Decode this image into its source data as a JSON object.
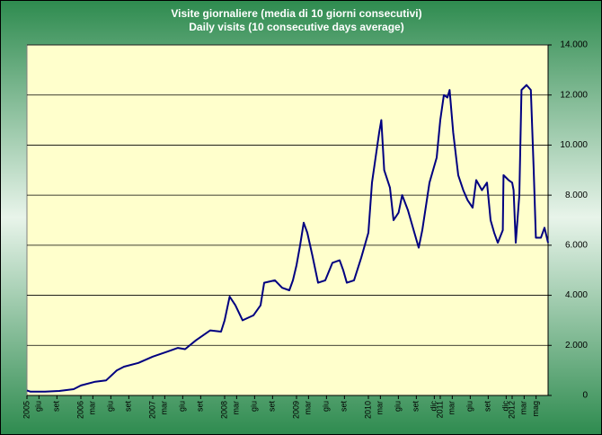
{
  "chart_data": {
    "type": "line",
    "title": "Visite giornaliere (media di 10 giorni consecutivi)",
    "subtitle": "Daily visits (10 consecutive days average)",
    "x": [
      2005.25,
      2005.3,
      2005.5,
      2005.7,
      2005.9,
      2006.0,
      2006.2,
      2006.35,
      2006.5,
      2006.6,
      2006.8,
      2007.0,
      2007.2,
      2007.35,
      2007.45,
      2007.6,
      2007.8,
      2007.95,
      2008.0,
      2008.07,
      2008.15,
      2008.25,
      2008.4,
      2008.5,
      2008.55,
      2008.7,
      2008.8,
      2008.9,
      2008.95,
      2009.0,
      2009.05,
      2009.1,
      2009.15,
      2009.22,
      2009.3,
      2009.4,
      2009.5,
      2009.6,
      2009.65,
      2009.7,
      2009.8,
      2009.9,
      2010.0,
      2010.05,
      2010.1,
      2010.15,
      2010.18,
      2010.22,
      2010.3,
      2010.35,
      2010.42,
      2010.47,
      2010.55,
      2010.62,
      2010.7,
      2010.75,
      2010.85,
      2010.95,
      2011.0,
      2011.05,
      2011.1,
      2011.13,
      2011.18,
      2011.25,
      2011.32,
      2011.38,
      2011.45,
      2011.5,
      2011.58,
      2011.65,
      2011.7,
      2011.75,
      2011.8,
      2011.87,
      2011.88,
      2011.95,
      2012.0,
      2012.02,
      2012.05,
      2012.1,
      2012.13,
      2012.2,
      2012.26,
      2012.3,
      2012.33,
      2012.4,
      2012.45,
      2012.5
    ],
    "values": [
      200,
      150,
      150,
      180,
      250,
      400,
      550,
      600,
      1000,
      1150,
      1300,
      1550,
      1750,
      1900,
      1850,
      2200,
      2600,
      2550,
      3000,
      3950,
      3600,
      3000,
      3200,
      3600,
      4500,
      4600,
      4300,
      4200,
      4600,
      5200,
      6000,
      6900,
      6500,
      5600,
      4500,
      4600,
      5300,
      5400,
      5000,
      4500,
      4600,
      5500,
      6500,
      8500,
      9500,
      10500,
      11000,
      9000,
      8300,
      7000,
      7300,
      8000,
      7400,
      6700,
      5900,
      6600,
      8500,
      9500,
      11000,
      12000,
      11900,
      12200,
      10500,
      8800,
      8200,
      7800,
      7500,
      8600,
      8200,
      8500,
      7000,
      6500,
      6100,
      6600,
      8800,
      8600,
      8500,
      8200,
      6100,
      8000,
      12200,
      12400,
      12200,
      9000,
      6300,
      6300,
      6700,
      6100
    ],
    "color": "#000080",
    "xlim": [
      2005.25,
      2012.5
    ],
    "xticks": [
      {
        "value": 2005.25,
        "label": "2005"
      },
      {
        "value": 2005.417,
        "label": "giu"
      },
      {
        "value": 2005.667,
        "label": "set"
      },
      {
        "value": 2006,
        "label": "2006"
      },
      {
        "value": 2006.167,
        "label": "mar"
      },
      {
        "value": 2006.417,
        "label": "giu"
      },
      {
        "value": 2006.667,
        "label": "set"
      },
      {
        "value": 2007,
        "label": "2007"
      },
      {
        "value": 2007.167,
        "label": "mar"
      },
      {
        "value": 2007.417,
        "label": "giu"
      },
      {
        "value": 2007.667,
        "label": "set"
      },
      {
        "value": 2008,
        "label": "2008"
      },
      {
        "value": 2008.167,
        "label": "mar"
      },
      {
        "value": 2008.417,
        "label": "giu"
      },
      {
        "value": 2008.667,
        "label": "set"
      },
      {
        "value": 2009,
        "label": "2009"
      },
      {
        "value": 2009.167,
        "label": "mar"
      },
      {
        "value": 2009.417,
        "label": "giu"
      },
      {
        "value": 2009.667,
        "label": "set"
      },
      {
        "value": 2010,
        "label": "2010"
      },
      {
        "value": 2010.167,
        "label": "mar"
      },
      {
        "value": 2010.417,
        "label": "giu"
      },
      {
        "value": 2010.667,
        "label": "set"
      },
      {
        "value": 2010.917,
        "label": "dic"
      },
      {
        "value": 2011,
        "label": "2011"
      },
      {
        "value": 2011.167,
        "label": "mar"
      },
      {
        "value": 2011.417,
        "label": "giu"
      },
      {
        "value": 2011.667,
        "label": "set"
      },
      {
        "value": 2011.917,
        "label": "dic"
      },
      {
        "value": 2012,
        "label": "2012"
      },
      {
        "value": 2012.167,
        "label": "mar"
      },
      {
        "value": 2012.333,
        "label": "mag"
      }
    ],
    "ylim": [
      0,
      14000
    ],
    "yticks": [
      0,
      {
        "value": 2000,
        "label": "2.000"
      },
      {
        "value": 4000,
        "label": "4.000"
      },
      {
        "value": 6000,
        "label": "6.000"
      },
      {
        "value": 8000,
        "label": "8.000"
      },
      {
        "value": 10000,
        "label": "10.000"
      },
      {
        "value": 12000,
        "label": "12.000"
      },
      {
        "value": 14000,
        "label": "14.000"
      }
    ],
    "grid": true
  }
}
